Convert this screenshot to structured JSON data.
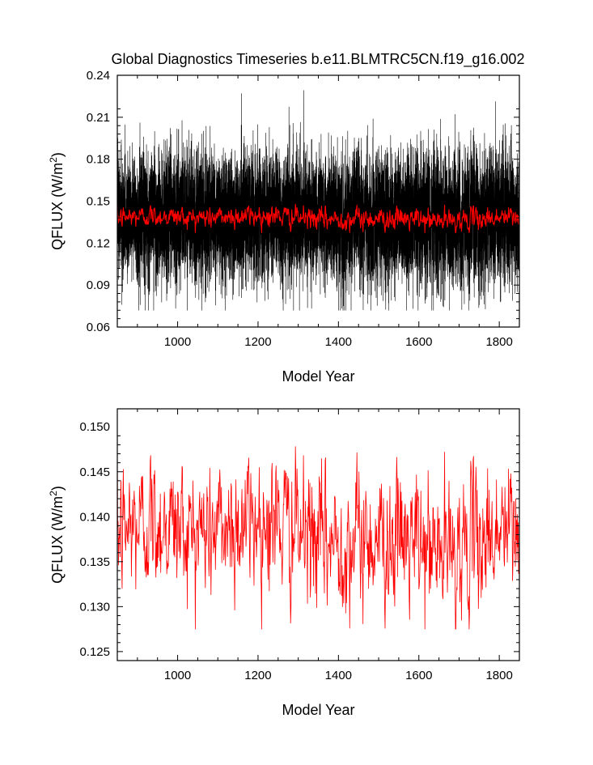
{
  "figure": {
    "title": "Global Diagnostics Timeseries b.e11.BLMTRC5CN.f19_g16.002"
  },
  "chart_data": [
    {
      "type": "line",
      "title": "Global Diagnostics Timeseries b.e11.BLMTRC5CN.f19_g16.002",
      "xlabel": "Model Year",
      "ylabel_base": "QFLUX (W/m",
      "ylabel_sup": "2",
      "ylabel_close": ")",
      "xlim": [
        850,
        1850
      ],
      "ylim": [
        0.06,
        0.24
      ],
      "x_ticks": [
        1000,
        1200,
        1400,
        1600,
        1800
      ],
      "y_ticks": [
        0.06,
        0.09,
        0.12,
        0.15,
        0.18,
        0.21,
        0.24
      ],
      "y_tick_labels": [
        "0.06",
        "0.09",
        "0.12",
        "0.15",
        "0.18",
        "0.21",
        "0.24"
      ],
      "grid": false,
      "series": [
        {
          "kind": "monthly",
          "color": "#000000",
          "x_start": 850,
          "x_end": 1850,
          "mean": 0.138,
          "std": 0.022,
          "min": 0.072,
          "max": 0.236
        },
        {
          "kind": "annual",
          "color": "#ff0000",
          "x_start": 850,
          "x_end": 1850,
          "mean": 0.138,
          "std": 0.0035,
          "min": 0.1275,
          "max": 0.1512
        }
      ]
    },
    {
      "type": "line",
      "title": "",
      "xlabel": "Model Year",
      "ylabel_base": "QFLUX (W/m",
      "ylabel_sup": "2",
      "ylabel_close": ")",
      "xlim": [
        850,
        1850
      ],
      "ylim": [
        0.124,
        0.152
      ],
      "x_ticks": [
        1000,
        1200,
        1400,
        1600,
        1800
      ],
      "y_ticks": [
        0.125,
        0.13,
        0.135,
        0.14,
        0.145,
        0.15
      ],
      "y_tick_labels": [
        "0.125",
        "0.130",
        "0.135",
        "0.140",
        "0.145",
        "0.150"
      ],
      "grid": false,
      "series": [
        {
          "kind": "annual",
          "color": "#ff0000",
          "x_start": 850,
          "x_end": 1850,
          "mean": 0.138,
          "std": 0.0035,
          "min": 0.1275,
          "max": 0.1512
        }
      ]
    }
  ]
}
